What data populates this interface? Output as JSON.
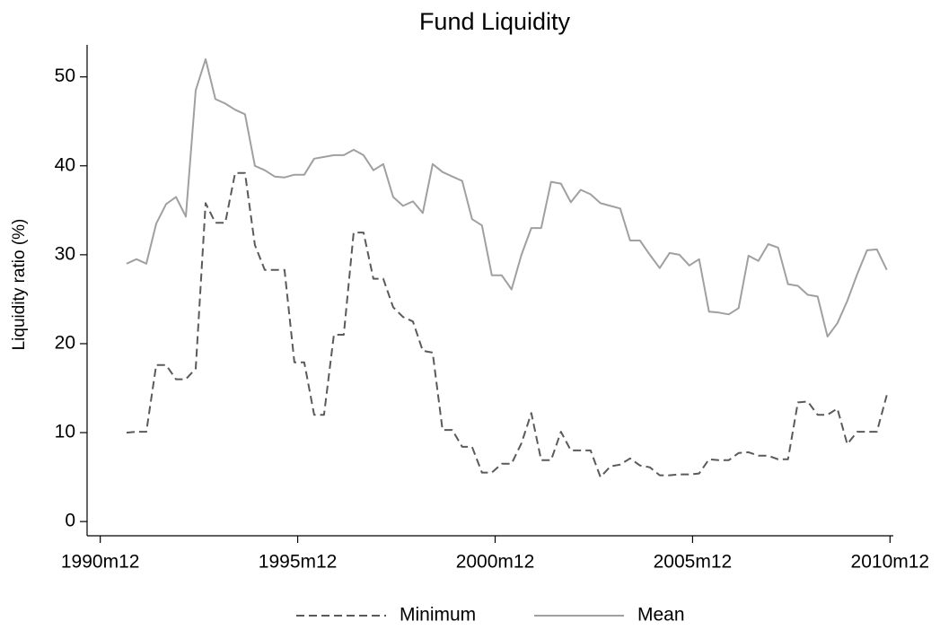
{
  "chart_data": {
    "type": "line",
    "title": "Fund Liquidity",
    "y_label": "Liquidity ratio (%)",
    "x": [
      379,
      382,
      385,
      388,
      391,
      394,
      397,
      400,
      403,
      406,
      409,
      412,
      415,
      418,
      421,
      424,
      427,
      430,
      433,
      436,
      439,
      442,
      445,
      448,
      451,
      454,
      457,
      460,
      463,
      466,
      469,
      472,
      475,
      478,
      481,
      484,
      487,
      490,
      493,
      496,
      499,
      502,
      505,
      508,
      511,
      514,
      517,
      520,
      523,
      526,
      529,
      532,
      535,
      538,
      541,
      544,
      547,
      550,
      553,
      556,
      559,
      562,
      565,
      568,
      571,
      574,
      577,
      580,
      583,
      586,
      589,
      592,
      595,
      598,
      601,
      604,
      607,
      610
    ],
    "series": [
      {
        "name": "Minimum",
        "color": "#5a5a5a",
        "line_style": "dashed",
        "values": [
          10,
          10.1,
          10.1,
          17.6,
          17.6,
          16,
          16,
          17.2,
          35.8,
          33.6,
          33.6,
          39.2,
          39.2,
          31.1,
          28.3,
          28.3,
          28.3,
          17.9,
          17.9,
          12,
          12,
          21,
          21,
          32.5,
          32.5,
          27.3,
          27.3,
          24.1,
          23,
          22.5,
          19.2,
          19,
          10.3,
          10.3,
          8.4,
          8.4,
          5.5,
          5.5,
          6.5,
          6.5,
          8.8,
          12.2,
          6.9,
          6.9,
          10.1,
          8,
          8,
          8,
          5,
          6.2,
          6.4,
          7.1,
          6.3,
          6.1,
          5.2,
          5.2,
          5.3,
          5.3,
          5.4,
          7,
          6.9,
          6.9,
          7.7,
          7.8,
          7.4,
          7.4,
          7,
          7,
          13.4,
          13.5,
          12,
          12,
          12.7,
          8.7,
          10.1,
          10.1,
          10.1,
          14.2
        ]
      },
      {
        "name": "Mean",
        "color": "#a0a0a0",
        "line_style": "solid",
        "values": [
          29,
          29.5,
          29,
          33.5,
          35.7,
          36.5,
          34.3,
          48.5,
          52,
          47.5,
          47,
          46.3,
          45.8,
          40,
          39.5,
          38.8,
          38.7,
          39,
          39,
          40.8,
          41,
          41.2,
          41.2,
          41.8,
          41.2,
          39.5,
          40.2,
          36.5,
          35.5,
          36,
          34.7,
          40.2,
          39.3,
          38.8,
          38.3,
          34,
          33.3,
          27.7,
          27.7,
          26.1,
          30,
          33,
          33,
          38.2,
          38,
          35.9,
          37.3,
          36.8,
          35.8,
          35.5,
          35.2,
          31.6,
          31.6,
          30,
          28.5,
          30.2,
          30,
          28.8,
          29.5,
          23.6,
          23.5,
          23.3,
          24,
          29.9,
          29.3,
          31.2,
          30.8,
          26.7,
          26.5,
          25.5,
          25.3,
          20.8,
          22.3,
          24.8,
          27.8,
          30.5,
          30.6,
          28.3
        ]
      }
    ],
    "xlim": [
      367,
      612
    ],
    "xticks": [
      {
        "value": 371,
        "label": "1990m12"
      },
      {
        "value": 431,
        "label": "1995m12"
      },
      {
        "value": 491,
        "label": "2000m12"
      },
      {
        "value": 551,
        "label": "2005m12"
      },
      {
        "value": 611,
        "label": "2010m12"
      }
    ],
    "ylim": [
      -1.6,
      53.6
    ],
    "yticks": [
      0,
      10,
      20,
      30,
      40,
      50
    ],
    "grid": false,
    "legend": "bottom"
  }
}
